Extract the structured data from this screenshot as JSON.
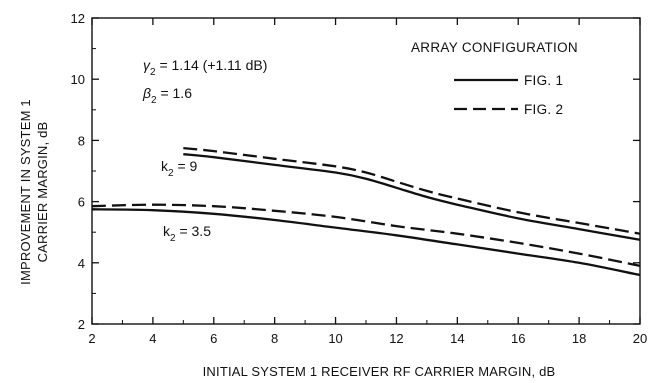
{
  "chart_data": {
    "type": "line",
    "xlabel": "INITIAL SYSTEM 1 RECEIVER RF CARRIER MARGIN, dB",
    "ylabel": [
      "IMPROVEMENT IN SYSTEM 1",
      "CARRIER MARGIN, dB"
    ],
    "xlim": [
      2,
      20
    ],
    "ylim": [
      2,
      12
    ],
    "xticks": [
      "2",
      "4",
      "6",
      "8",
      "10",
      "12",
      "14",
      "16",
      "18",
      "20"
    ],
    "yticks": [
      "2",
      "4",
      "6",
      "8",
      "10",
      "12"
    ],
    "grid": false,
    "legend": {
      "title": "ARRAY CONFIGURATION",
      "placement": "top-right",
      "entries": [
        {
          "label": "FIG. 1",
          "style": "solid"
        },
        {
          "label": "FIG. 2",
          "style": "dashed"
        }
      ]
    },
    "annotations": {
      "gamma": {
        "symbol": "γ",
        "sub": "2",
        "text": " = 1.14 (+1.11 dB)"
      },
      "beta": {
        "symbol": "β",
        "sub": "2",
        "text": " = 1.6"
      },
      "k9": {
        "symbol": "k",
        "sub": "2",
        "text": " = 9"
      },
      "k35": {
        "symbol": "k",
        "sub": "2",
        "text": " = 3.5"
      }
    },
    "series": [
      {
        "group": "k2 = 9",
        "style": "solid",
        "x": [
          5,
          6,
          8,
          10,
          11,
          12,
          13,
          14,
          16,
          18,
          20
        ],
        "y": [
          7.55,
          7.45,
          7.2,
          6.95,
          6.75,
          6.45,
          6.15,
          5.9,
          5.45,
          5.1,
          4.75
        ]
      },
      {
        "group": "k2 = 9",
        "style": "dashed",
        "x": [
          5,
          6,
          8,
          10,
          11,
          12,
          13,
          14,
          16,
          18,
          20
        ],
        "y": [
          7.75,
          7.65,
          7.4,
          7.15,
          6.95,
          6.65,
          6.35,
          6.1,
          5.65,
          5.3,
          4.95
        ]
      },
      {
        "group": "k2 = 3.5",
        "style": "solid",
        "x": [
          2,
          4,
          6,
          8,
          10,
          12,
          14,
          16,
          18,
          20
        ],
        "y": [
          5.75,
          5.72,
          5.6,
          5.4,
          5.15,
          4.9,
          4.6,
          4.3,
          4.0,
          3.6
        ]
      },
      {
        "group": "k2 = 3.5",
        "style": "dashed",
        "x": [
          2,
          4,
          6,
          8,
          10,
          12,
          14,
          16,
          18,
          20
        ],
        "y": [
          5.85,
          5.9,
          5.85,
          5.7,
          5.5,
          5.2,
          4.95,
          4.65,
          4.3,
          3.9
        ]
      }
    ]
  }
}
